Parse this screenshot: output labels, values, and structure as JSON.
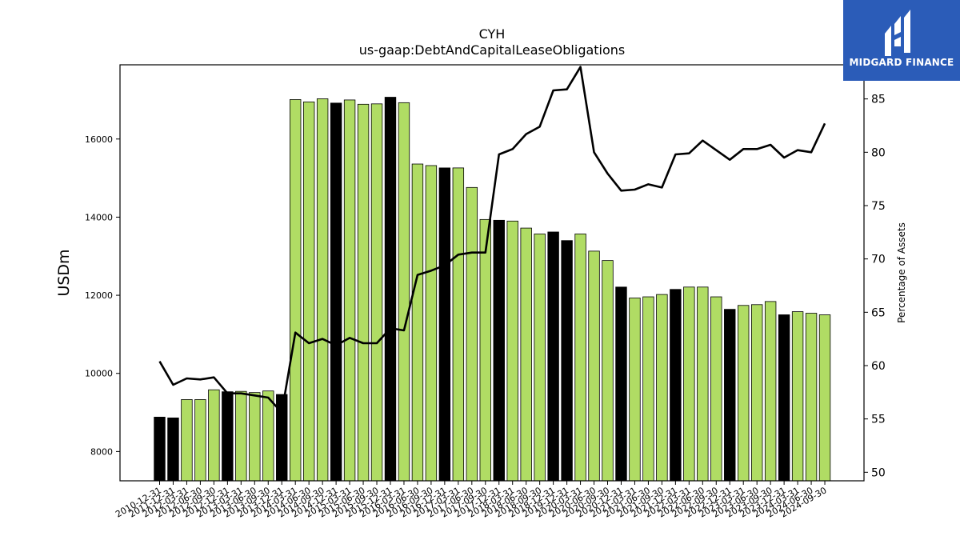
{
  "chart_data": {
    "type": "bar",
    "title": "CYH",
    "subtitle": "us-gaap:DebtAndCapitalLeaseObligations",
    "ylabel": "USDm",
    "y2label": "Percentage of Assets",
    "ylim": [
      7250,
      17900
    ],
    "y2lim": [
      49.2,
      88.2
    ],
    "yticks": [
      8000,
      10000,
      12000,
      14000,
      16000
    ],
    "y2ticks": [
      50,
      55,
      60,
      65,
      70,
      75,
      80,
      85
    ],
    "colors": {
      "bar_light": "#b0dc64",
      "bar_dark": "#000000",
      "line": "#000000"
    },
    "categories": [
      "2010-12-31",
      "2011-12-31",
      "2012-03-31",
      "2012-06-30",
      "2012-09-30",
      "2012-12-31",
      "2013-03-31",
      "2013-06-30",
      "2013-09-30",
      "2013-12-31",
      "2014-03-31",
      "2014-06-30",
      "2014-09-30",
      "2014-12-31",
      "2015-03-31",
      "2015-06-30",
      "2015-09-30",
      "2015-12-31",
      "2016-03-31",
      "2016-06-30",
      "2016-09-30",
      "2016-12-31",
      "2017-03-31",
      "2017-06-30",
      "2017-09-30",
      "2017-12-31",
      "2018-03-31",
      "2018-06-30",
      "2018-09-30",
      "2018-12-31",
      "2019-12-31",
      "2020-03-31",
      "2020-06-30",
      "2020-09-30",
      "2020-12-31",
      "2021-03-31",
      "2021-06-30",
      "2021-09-30",
      "2021-12-31",
      "2022-03-31",
      "2022-06-30",
      "2022-09-30",
      "2022-12-31",
      "2023-03-31",
      "2023-06-30",
      "2023-09-30",
      "2023-12-31",
      "2024-03-31",
      "2024-06-30",
      "2024-09-30"
    ],
    "series": [
      {
        "type": "bar",
        "values": [
          8880,
          8860,
          9330,
          9330,
          9580,
          9530,
          9540,
          9510,
          9550,
          9460,
          17010,
          16950,
          17030,
          16920,
          17000,
          16890,
          16900,
          17070,
          16930,
          15360,
          15320,
          15260,
          15260,
          14760,
          13940,
          13920,
          13900,
          13720,
          13570,
          13620,
          13400,
          13570,
          13130,
          12890,
          12210,
          11930,
          11960,
          12020,
          12150,
          12210,
          12210,
          11960,
          11640,
          11740,
          11760,
          11840,
          11500,
          11580,
          11540,
          11500
        ],
        "dark": [
          true,
          true,
          false,
          false,
          false,
          true,
          false,
          false,
          false,
          true,
          false,
          false,
          false,
          true,
          false,
          false,
          false,
          true,
          false,
          false,
          false,
          true,
          false,
          false,
          false,
          true,
          false,
          false,
          false,
          true,
          true,
          false,
          false,
          false,
          true,
          false,
          false,
          false,
          true,
          false,
          false,
          false,
          true,
          false,
          false,
          false,
          true,
          false,
          false,
          false
        ]
      },
      {
        "type": "line",
        "axis": "right",
        "values": [
          60.4,
          58.2,
          58.8,
          58.7,
          58.9,
          57.4,
          57.4,
          57.2,
          57.0,
          55.6,
          63.1,
          62.1,
          62.5,
          61.9,
          62.6,
          62.1,
          62.1,
          63.5,
          63.3,
          68.5,
          68.9,
          69.4,
          70.4,
          70.6,
          70.6,
          79.8,
          80.3,
          81.7,
          82.4,
          85.8,
          85.9,
          88.0,
          80.0,
          78.0,
          76.4,
          76.5,
          77.0,
          76.7,
          79.8,
          79.9,
          81.1,
          80.2,
          79.3,
          80.3,
          80.3,
          80.7,
          79.5,
          80.2,
          80.0,
          82.7
        ]
      }
    ]
  },
  "logo": {
    "text": "MIDGARD FINANCE"
  }
}
